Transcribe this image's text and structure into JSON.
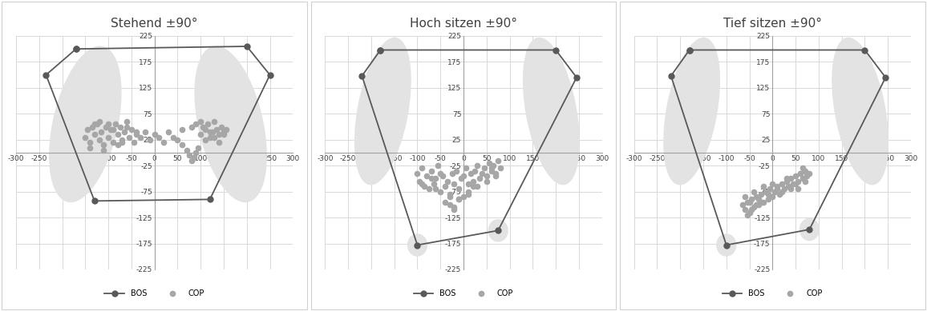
{
  "chart_data": [
    {
      "type": "scatter",
      "title": "Stehend ±90°",
      "xlim": [
        -300,
        300
      ],
      "ylim": [
        -225,
        225
      ],
      "xticks": [
        -300,
        -250,
        -200,
        -150,
        -100,
        -50,
        0,
        50,
        100,
        150,
        200,
        250,
        300
      ],
      "yticks": [
        -225,
        -175,
        -125,
        -75,
        -25,
        25,
        75,
        125,
        175,
        225
      ],
      "grid": true,
      "legend": "lower center",
      "series": [
        {
          "name": "BOS",
          "color": "#595959",
          "marker": "circle",
          "line_style": "solid",
          "x": [
            -170,
            200,
            250,
            120,
            -130,
            -235,
            -170
          ],
          "values": [
            200,
            205,
            150,
            -90,
            -93,
            150,
            200
          ]
        },
        {
          "name": "COP",
          "color": "#a6a6a6",
          "marker": "circle",
          "line_style": "none",
          "x": [
            -150,
            -145,
            -140,
            -135,
            -130,
            -125,
            -120,
            -115,
            -110,
            -105,
            -100,
            -95,
            -90,
            -85,
            -80,
            -75,
            -70,
            -65,
            -60,
            -55,
            -50,
            -45,
            -40,
            -30,
            -20,
            -10,
            0,
            10,
            20,
            30,
            40,
            50,
            60,
            70,
            75,
            80,
            85,
            90,
            95,
            100,
            105,
            110,
            115,
            120,
            125,
            130,
            135,
            140,
            145,
            150,
            155,
            -140,
            -120,
            -100,
            -80,
            -60,
            -40,
            -130,
            -110,
            -90,
            -70,
            90,
            110,
            130,
            150,
            100,
            120,
            140,
            80,
            60
          ],
          "values": [
            30,
            45,
            20,
            50,
            35,
            55,
            25,
            40,
            15,
            50,
            30,
            45,
            20,
            55,
            35,
            50,
            25,
            40,
            60,
            30,
            45,
            20,
            35,
            30,
            40,
            25,
            35,
            30,
            20,
            40,
            30,
            25,
            15,
            5,
            -5,
            -15,
            -10,
            0,
            10,
            35,
            50,
            45,
            55,
            30,
            40,
            60,
            45,
            35,
            50,
            40,
            45,
            10,
            60,
            55,
            15,
            50,
            40,
            55,
            5,
            45,
            20,
            55,
            25,
            30,
            35,
            60,
            40,
            20,
            50,
            45
          ]
        }
      ]
    },
    {
      "type": "scatter",
      "title": "Hoch sitzen ±90°",
      "xlim": [
        -300,
        300
      ],
      "ylim": [
        -225,
        225
      ],
      "xticks": [
        -300,
        -250,
        -200,
        -150,
        -100,
        -50,
        0,
        50,
        100,
        150,
        200,
        250,
        300
      ],
      "yticks": [
        -225,
        -175,
        -125,
        -75,
        -25,
        25,
        75,
        125,
        175,
        225
      ],
      "grid": true,
      "legend": "lower center",
      "series": [
        {
          "name": "BOS",
          "color": "#595959",
          "marker": "circle",
          "line_style": "solid",
          "x": [
            -180,
            200,
            245,
            75,
            -100,
            -220,
            -180
          ],
          "values": [
            198,
            198,
            145,
            -150,
            -178,
            148,
            198
          ]
        },
        {
          "name": "COP",
          "color": "#a6a6a6",
          "marker": "circle",
          "line_style": "none",
          "x": [
            -100,
            -95,
            -90,
            -85,
            -80,
            -75,
            -70,
            -65,
            -60,
            -55,
            -50,
            -45,
            -40,
            -35,
            -30,
            -25,
            -20,
            -15,
            -10,
            -5,
            0,
            5,
            10,
            15,
            20,
            25,
            30,
            35,
            40,
            45,
            50,
            55,
            60,
            65,
            70,
            75,
            80,
            -90,
            -70,
            -50,
            -30,
            -10,
            10,
            30,
            50,
            70,
            -40,
            -30,
            -20,
            -10,
            0,
            10,
            -60,
            -20,
            20,
            60
          ],
          "values": [
            -40,
            -55,
            -30,
            -65,
            -45,
            -70,
            -35,
            -60,
            -50,
            -25,
            -75,
            -45,
            -65,
            -55,
            -80,
            -40,
            -60,
            -35,
            -70,
            -50,
            -45,
            -30,
            -60,
            -40,
            -55,
            -35,
            -25,
            -50,
            -40,
            -30,
            -45,
            -20,
            -35,
            -25,
            -40,
            -15,
            -30,
            -60,
            -50,
            -40,
            -85,
            -90,
            -80,
            -65,
            -55,
            -45,
            -95,
            -100,
            -105,
            -90,
            -85,
            -75,
            -70,
            -110,
            -65,
            -30
          ]
        }
      ]
    },
    {
      "type": "scatter",
      "title": "Tief sitzen ±90°",
      "xlim": [
        -300,
        300
      ],
      "ylim": [
        -225,
        225
      ],
      "xticks": [
        -300,
        -250,
        -200,
        -150,
        -100,
        -50,
        0,
        50,
        100,
        150,
        200,
        250,
        300
      ],
      "yticks": [
        -225,
        -175,
        -125,
        -75,
        -25,
        25,
        75,
        125,
        175,
        225
      ],
      "grid": true,
      "legend": "lower center",
      "series": [
        {
          "name": "BOS",
          "color": "#595959",
          "marker": "circle",
          "line_style": "solid",
          "x": [
            -180,
            200,
            245,
            80,
            -100,
            -220,
            -180
          ],
          "values": [
            198,
            198,
            145,
            -148,
            -178,
            148,
            198
          ]
        },
        {
          "name": "COP",
          "color": "#a6a6a6",
          "marker": "circle",
          "line_style": "none",
          "x": [
            -65,
            -60,
            -55,
            -50,
            -45,
            -40,
            -35,
            -30,
            -25,
            -20,
            -15,
            -10,
            -5,
            0,
            5,
            10,
            15,
            20,
            25,
            30,
            35,
            40,
            45,
            50,
            55,
            60,
            65,
            70,
            75,
            80,
            -60,
            -50,
            -40,
            -30,
            -20,
            -10,
            0,
            10,
            20,
            30,
            40,
            50,
            60,
            70,
            -55,
            -45,
            -35,
            -25,
            65,
            55
          ],
          "values": [
            -100,
            -110,
            -95,
            -115,
            -90,
            -105,
            -85,
            -100,
            -80,
            -95,
            -75,
            -90,
            -70,
            -85,
            -75,
            -65,
            -80,
            -60,
            -70,
            -55,
            -65,
            -50,
            -60,
            -45,
            -55,
            -40,
            -50,
            -35,
            -45,
            -40,
            -85,
            -95,
            -75,
            -90,
            -65,
            -80,
            -60,
            -70,
            -75,
            -50,
            -70,
            -60,
            -40,
            -55,
            -120,
            -110,
            -100,
            -95,
            -30,
            -70
          ]
        }
      ]
    }
  ]
}
